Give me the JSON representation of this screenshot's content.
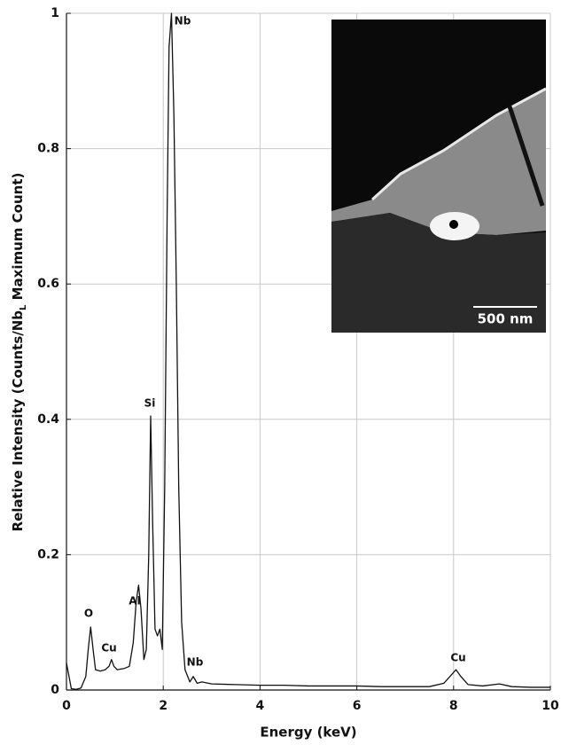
{
  "chart_data": {
    "type": "line",
    "x_label": "Energy (keV)",
    "y_label": [
      "Relative Intensity (Counts/Nb",
      "L",
      " Maximum Count)"
    ],
    "x": [
      0,
      0.1,
      0.2,
      0.3,
      0.4,
      0.45,
      0.5,
      0.55,
      0.6,
      0.7,
      0.8,
      0.88,
      0.93,
      0.98,
      1.05,
      1.2,
      1.3,
      1.38,
      1.44,
      1.49,
      1.54,
      1.6,
      1.65,
      1.7,
      1.74,
      1.78,
      1.83,
      1.88,
      1.93,
      1.98,
      2.03,
      2.08,
      2.12,
      2.17,
      2.22,
      2.27,
      2.32,
      2.38,
      2.45,
      2.55,
      2.62,
      2.7,
      2.8,
      3.0,
      3.5,
      4,
      4.5,
      5,
      5.5,
      6,
      6.5,
      7,
      7.5,
      7.8,
      7.95,
      8.05,
      8.15,
      8.3,
      8.6,
      8.95,
      9.2,
      9.6,
      10
    ],
    "values": [
      0.04,
      0.002,
      0.001,
      0.003,
      0.02,
      0.06,
      0.093,
      0.06,
      0.03,
      0.028,
      0.03,
      0.035,
      0.045,
      0.035,
      0.03,
      0.032,
      0.035,
      0.07,
      0.13,
      0.155,
      0.12,
      0.045,
      0.06,
      0.2,
      0.405,
      0.25,
      0.09,
      0.08,
      0.09,
      0.06,
      0.3,
      0.7,
      0.95,
      1.0,
      0.85,
      0.6,
      0.3,
      0.1,
      0.03,
      0.012,
      0.02,
      0.01,
      0.012,
      0.009,
      0.008,
      0.007,
      0.007,
      0.006,
      0.006,
      0.006,
      0.005,
      0.005,
      0.005,
      0.01,
      0.022,
      0.03,
      0.02,
      0.008,
      0.006,
      0.009,
      0.005,
      0.004,
      0.004
    ],
    "color": "#111111",
    "xlim": [
      0,
      10
    ],
    "xticks": [
      0,
      2,
      4,
      6,
      8,
      10
    ],
    "ylim": [
      0,
      1
    ],
    "yticks": [
      0,
      0.2,
      0.4,
      0.6,
      0.8,
      1
    ],
    "grid": true,
    "annotations": [
      "O",
      "Cu",
      "Al",
      "Si",
      "Nb",
      "Nb",
      "Cu"
    ],
    "inset_scale": "500 nm"
  }
}
